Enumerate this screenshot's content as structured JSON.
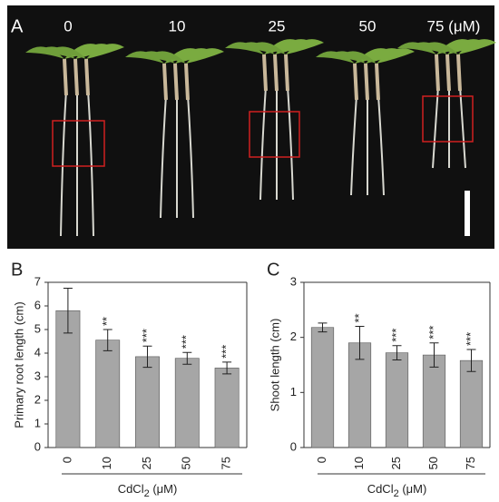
{
  "photo": {
    "panel_label": "A",
    "labels": [
      "0",
      "10",
      "25",
      "50",
      "75 (μM)"
    ]
  },
  "chart_data": [
    {
      "type": "bar",
      "panel_label": "B",
      "ylabel": "Primary root length (cm)",
      "xlabel": [
        "CdCl",
        "2",
        " (μM)"
      ],
      "categories": [
        "0",
        "10",
        "25",
        "50",
        "75"
      ],
      "values": [
        5.8,
        4.55,
        3.85,
        3.78,
        3.37
      ],
      "errors": [
        0.95,
        0.45,
        0.45,
        0.25,
        0.25
      ],
      "significance": [
        null,
        "**",
        "***",
        "***",
        "***"
      ],
      "color": "#a6a6a6",
      "ylim": [
        0,
        7
      ],
      "yticks": [
        0,
        1,
        2,
        3,
        4,
        5,
        6,
        7
      ]
    },
    {
      "type": "bar",
      "panel_label": "C",
      "ylabel": "Shoot length (cm)",
      "xlabel": [
        "CdCl",
        "2",
        " (μM)"
      ],
      "categories": [
        "0",
        "10",
        "25",
        "50",
        "75"
      ],
      "values": [
        2.18,
        1.9,
        1.72,
        1.68,
        1.58
      ],
      "errors": [
        0.08,
        0.3,
        0.13,
        0.22,
        0.2
      ],
      "significance": [
        null,
        "**",
        "***",
        "***",
        "***"
      ],
      "color": "#a6a6a6",
      "ylim": [
        0,
        3
      ],
      "yticks": [
        0,
        1,
        2,
        3
      ]
    }
  ]
}
